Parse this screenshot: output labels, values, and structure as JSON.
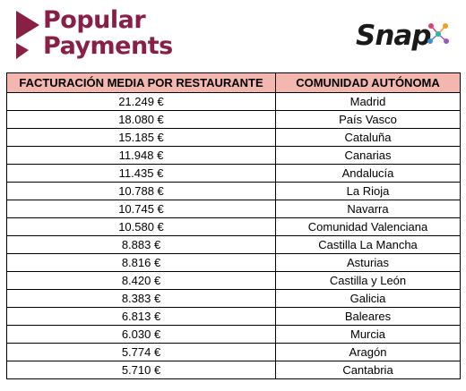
{
  "header": {
    "brand_left_line1": "Popular",
    "brand_left_line2": "Payments",
    "brand_right": "Snap",
    "brand_color": "#8a1f45",
    "header_fill": "#f4b7b0"
  },
  "table": {
    "columns": [
      "FACTURACIÓN MEDIA POR RESTAURANTE",
      "COMUNIDAD AUTÓNOMA"
    ],
    "rows": [
      {
        "revenue": "21.249 €",
        "region": "Madrid"
      },
      {
        "revenue": "18.080 €",
        "region": "País Vasco"
      },
      {
        "revenue": "15.185 €",
        "region": "Cataluña"
      },
      {
        "revenue": "11.948 €",
        "region": "Canarias"
      },
      {
        "revenue": "11.435 €",
        "region": "Andalucía"
      },
      {
        "revenue": "10.788 €",
        "region": "La Rioja"
      },
      {
        "revenue": "10.745 €",
        "region": "Navarra"
      },
      {
        "revenue": "10.580 €",
        "region": "Comunidad Valenciana"
      },
      {
        "revenue": "8.883 €",
        "region": "Castilla La Mancha"
      },
      {
        "revenue": "8.816 €",
        "region": "Asturias"
      },
      {
        "revenue": "8.420 €",
        "region": "Castilla y León"
      },
      {
        "revenue": "8.383 €",
        "region": "Galicia"
      },
      {
        "revenue": "6.813 €",
        "region": "Baleares"
      },
      {
        "revenue": "6.030 €",
        "region": "Murcia"
      },
      {
        "revenue": "5.774 €",
        "region": "Aragón"
      },
      {
        "revenue": "5.710 €",
        "region": "Cantabria"
      }
    ]
  }
}
